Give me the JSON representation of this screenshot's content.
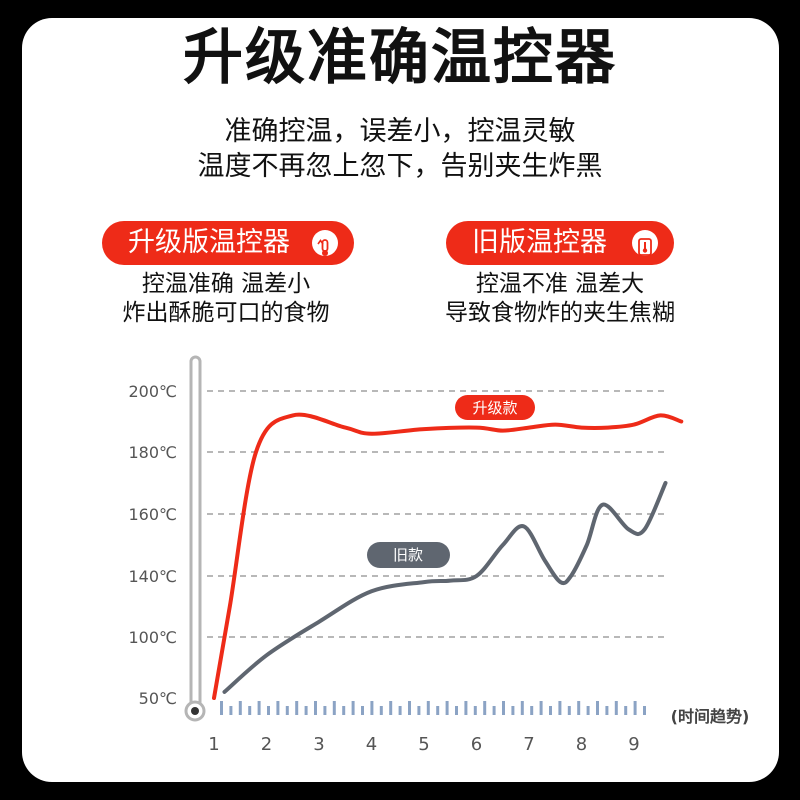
{
  "header": {
    "title": "升级准确温控器",
    "subtitle_line1": "准确控温，误差小，控温灵敏",
    "subtitle_line2": "温度不再忽上忽下，告别夹生炸黑"
  },
  "compare": {
    "new": {
      "label": "升级版温控器",
      "icon": "thermometer-up-icon",
      "desc_line1": "控温准确  温差小",
      "desc_line2": "炸出酥脆可口的食物"
    },
    "old": {
      "label": "旧版温控器",
      "icon": "thermometer-icon",
      "desc_line1": "控温不准 温差大",
      "desc_line2": "导致食物炸的夹生焦糊"
    }
  },
  "colors": {
    "accent": "#ee2b18",
    "old_series": "#5f6670",
    "card": "#ffffff",
    "background": "#000000"
  },
  "chart_data": {
    "type": "line",
    "title": "",
    "xlabel": "(时间趋势)",
    "ylabel": "",
    "x_ticks": [
      "1",
      "2",
      "3",
      "4",
      "5",
      "6",
      "7",
      "8",
      "9"
    ],
    "y_ticks": [
      "200℃",
      "180℃",
      "160℃",
      "140℃",
      "100℃",
      "50℃"
    ],
    "grid": true,
    "legend": "inline labels",
    "series": [
      {
        "name": "升级款",
        "color": "#ee2b18",
        "x": [
          1,
          1.3,
          1.8,
          2.5,
          3.5,
          4,
          5,
          6,
          6.5,
          7,
          7.5,
          8,
          8.5,
          9,
          9.5,
          9.9
        ],
        "y": [
          50,
          120,
          180,
          192,
          188,
          186,
          187.5,
          188,
          187,
          188,
          189,
          188,
          188,
          189,
          192,
          190
        ]
      },
      {
        "name": "旧款",
        "color": "#5f6670",
        "x": [
          1.2,
          2,
          3,
          4,
          5,
          5.5,
          6,
          6.5,
          6.9,
          7.3,
          7.6,
          7.8,
          8.1,
          8.4,
          8.9,
          9.2,
          9.6
        ],
        "y": [
          55,
          85,
          110,
          130,
          136,
          137,
          140,
          150,
          156,
          145,
          136,
          140,
          150,
          163,
          155,
          155,
          170
        ]
      }
    ]
  }
}
